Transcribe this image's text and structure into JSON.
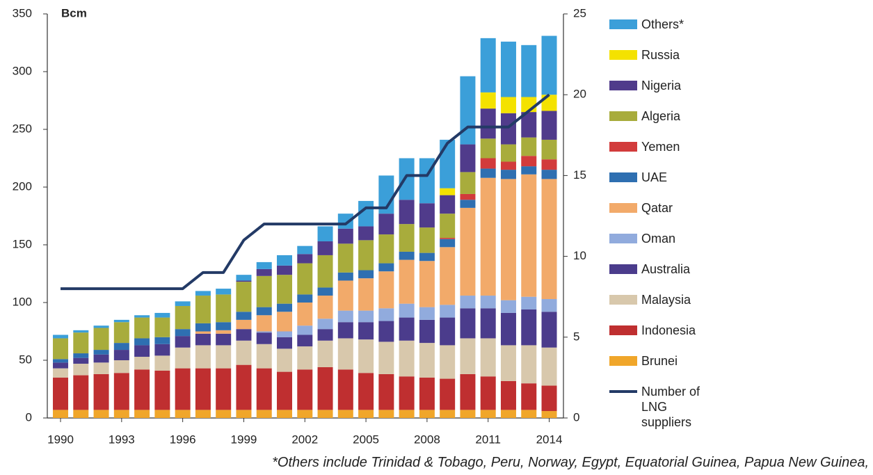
{
  "chart_data": {
    "type": "bar",
    "stacked": true,
    "y_label": "Bcm",
    "footnote": "*Others include Trinidad & Tobago, Peru, Norway, Egypt, Equatorial Guinea, Papua New Guinea,",
    "x": [
      1990,
      1991,
      1992,
      1993,
      1994,
      1995,
      1996,
      1997,
      1998,
      1999,
      2000,
      2001,
      2002,
      2003,
      2004,
      2005,
      2006,
      2007,
      2008,
      2009,
      2010,
      2011,
      2012,
      2013,
      2014
    ],
    "xlim": [
      1989.35,
      2014.7
    ],
    "xticks": [
      1990,
      1993,
      1996,
      1999,
      2002,
      2005,
      2008,
      2011,
      2014
    ],
    "ylim": [
      0,
      350
    ],
    "yticks": [
      0,
      50,
      100,
      150,
      200,
      250,
      300,
      350
    ],
    "y2lim": [
      0,
      25
    ],
    "y2ticks": [
      0,
      5,
      10,
      15,
      20,
      25
    ],
    "grid": false,
    "series": [
      {
        "name": "Brunei",
        "color": "#f0a62a",
        "values": [
          7,
          7,
          7,
          7,
          7,
          7,
          7,
          7,
          7,
          7,
          7,
          7,
          7,
          7,
          7,
          7,
          7,
          7,
          7,
          7,
          7,
          7,
          7,
          7,
          6
        ]
      },
      {
        "name": "Indonesia",
        "color": "#bf2f30",
        "values": [
          28,
          30,
          31,
          32,
          35,
          34,
          36,
          36,
          36,
          39,
          36,
          33,
          35,
          37,
          35,
          32,
          31,
          29,
          28,
          27,
          31,
          29,
          25,
          23,
          22
        ]
      },
      {
        "name": "Malaysia",
        "color": "#d8c8ac",
        "values": [
          8,
          10,
          10,
          11,
          11,
          13,
          18,
          20,
          20,
          21,
          21,
          20,
          20,
          23,
          27,
          29,
          28,
          31,
          30,
          29,
          31,
          33,
          31,
          33,
          33
        ]
      },
      {
        "name": "Australia",
        "color": "#4b3c8c",
        "values": [
          5,
          5,
          7,
          9,
          10,
          10,
          10,
          10,
          10,
          10,
          10,
          10,
          10,
          10,
          14,
          15,
          18,
          20,
          20,
          24,
          26,
          26,
          28,
          31,
          31
        ]
      },
      {
        "name": "Oman",
        "color": "#91abdd",
        "values": [
          0,
          0,
          0,
          0,
          0,
          0,
          0,
          0,
          0,
          0,
          1,
          5,
          8,
          9,
          10,
          10,
          11,
          12,
          11,
          11,
          11,
          11,
          11,
          11,
          11
        ]
      },
      {
        "name": "Qatar",
        "color": "#f2aa6a",
        "values": [
          0,
          0,
          0,
          0,
          0,
          0,
          0,
          2,
          3,
          8,
          14,
          17,
          20,
          20,
          26,
          28,
          32,
          38,
          40,
          50,
          76,
          102,
          105,
          106,
          104
        ]
      },
      {
        "name": "UAE",
        "color": "#2e6fb1",
        "values": [
          3,
          4,
          4,
          6,
          6,
          6,
          6,
          7,
          7,
          7,
          7,
          7,
          7,
          7,
          7,
          7,
          7,
          7,
          7,
          7,
          7,
          8,
          8,
          7,
          8
        ]
      },
      {
        "name": "Yemen",
        "color": "#d23b3b",
        "values": [
          0,
          0,
          0,
          0,
          0,
          0,
          0,
          0,
          0,
          0,
          0,
          0,
          0,
          0,
          0,
          0,
          0,
          0,
          0,
          1,
          5,
          9,
          7,
          9,
          9
        ]
      },
      {
        "name": "Algeria",
        "color": "#a8ac3c",
        "values": [
          18,
          18,
          19,
          18,
          18,
          17,
          20,
          24,
          24,
          26,
          27,
          25,
          27,
          28,
          25,
          26,
          25,
          24,
          22,
          21,
          19,
          17,
          15,
          16,
          17
        ]
      },
      {
        "name": "Nigeria",
        "color": "#503b8b",
        "values": [
          0,
          0,
          0,
          0,
          0,
          0,
          0,
          0,
          0,
          1,
          6,
          8,
          8,
          12,
          13,
          12,
          18,
          21,
          21,
          16,
          24,
          26,
          27,
          22,
          25
        ]
      },
      {
        "name": "Russia",
        "color": "#f4e200",
        "values": [
          0,
          0,
          0,
          0,
          0,
          0,
          0,
          0,
          0,
          0,
          0,
          0,
          0,
          0,
          0,
          0,
          0,
          0,
          0,
          6,
          0,
          14,
          14,
          13,
          14
        ]
      },
      {
        "name": "Others*",
        "color": "#3b9fd9",
        "values": [
          3,
          2,
          2,
          2,
          2,
          4,
          4,
          4,
          5,
          5,
          6,
          9,
          7,
          13,
          13,
          22,
          33,
          36,
          39,
          42,
          59,
          47,
          48,
          45,
          51
        ]
      },
      {
        "name": "Number of LNG suppliers",
        "type": "line",
        "axis": "y2",
        "color": "#233a66",
        "values": [
          8,
          8,
          8,
          8,
          8,
          8,
          8,
          9,
          9,
          11,
          12,
          12,
          12,
          12,
          12,
          13,
          13,
          15,
          15,
          17,
          18,
          18,
          18,
          19,
          20
        ]
      }
    ]
  }
}
